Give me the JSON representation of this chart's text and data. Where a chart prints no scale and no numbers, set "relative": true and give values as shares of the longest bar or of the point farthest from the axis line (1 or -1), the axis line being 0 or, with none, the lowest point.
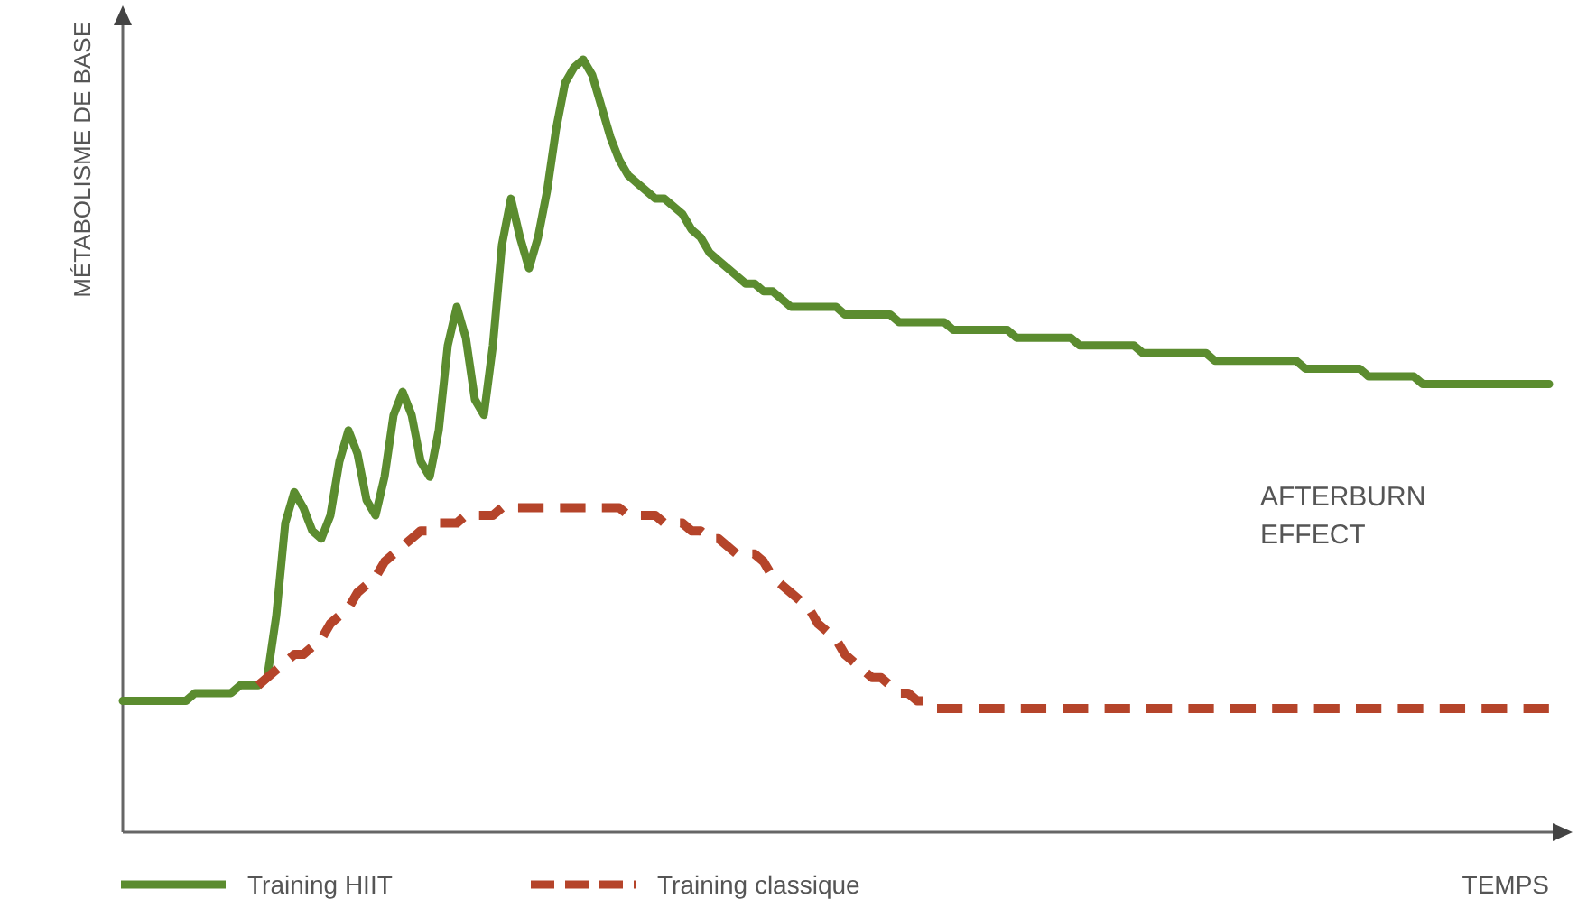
{
  "chart_data": {
    "type": "line",
    "relative": true,
    "xlabel": "TEMPS",
    "ylabel": "MÉTABOLISME DE BASE",
    "legend": "bottom",
    "annotations": [
      "AFTERBURN EFFECT"
    ],
    "categories": [
      null,
      null,
      null,
      null,
      null,
      null,
      null,
      null,
      null,
      null,
      null,
      null,
      null,
      null,
      null,
      null,
      null,
      null,
      null,
      null,
      null,
      null,
      null,
      null,
      null,
      null,
      null,
      null,
      null,
      null,
      null,
      null,
      null,
      null,
      null,
      null,
      null,
      null,
      null,
      null,
      null,
      null,
      null,
      null,
      null,
      null,
      null,
      null,
      null,
      null,
      null,
      null,
      null,
      null,
      null,
      null,
      null,
      null,
      null,
      null,
      null,
      null,
      null,
      null,
      null,
      null,
      null,
      null,
      null,
      null,
      null,
      null,
      null,
      null,
      null,
      null,
      null,
      null,
      null,
      null,
      null,
      null,
      null,
      null,
      null,
      null,
      null,
      null,
      null,
      null,
      null,
      null,
      null,
      null,
      null,
      null,
      null,
      null,
      null,
      null,
      null,
      null,
      null,
      null,
      null,
      null,
      null,
      null,
      null,
      null,
      null,
      null,
      null,
      null,
      null,
      null,
      null,
      null,
      null,
      null,
      null,
      null,
      null,
      null,
      null,
      null,
      null,
      null,
      null,
      null,
      null,
      null,
      null,
      null,
      null,
      null,
      null,
      null,
      null,
      null,
      null,
      null,
      null,
      null,
      null,
      null,
      null,
      null,
      null,
      null,
      null,
      null,
      null,
      null,
      null,
      null,
      null,
      null,
      null
    ],
    "series": [
      {
        "name": "Training HIIT",
        "color": "#5b8c2f",
        "line_style": "solid",
        "values": [
          0.17,
          0.17,
          0.17,
          0.17,
          0.17,
          0.17,
          0.17,
          0.17,
          0.18,
          0.18,
          0.18,
          0.18,
          0.18,
          0.19,
          0.19,
          0.19,
          0.2,
          0.28,
          0.4,
          0.44,
          0.42,
          0.39,
          0.38,
          0.41,
          0.48,
          0.52,
          0.49,
          0.43,
          0.41,
          0.46,
          0.54,
          0.57,
          0.54,
          0.48,
          0.46,
          0.52,
          0.63,
          0.68,
          0.64,
          0.56,
          0.54,
          0.63,
          0.76,
          0.82,
          0.77,
          0.73,
          0.77,
          0.83,
          0.91,
          0.97,
          0.99,
          1,
          0.98,
          0.94,
          0.9,
          0.87,
          0.85,
          0.84,
          0.83,
          0.82,
          0.82,
          0.81,
          0.8,
          0.78,
          0.77,
          0.75,
          0.74,
          0.73,
          0.72,
          0.71,
          0.71,
          0.7,
          0.7,
          0.69,
          0.68,
          0.68,
          0.68,
          0.68,
          0.68,
          0.68,
          0.67,
          0.67,
          0.67,
          0.67,
          0.67,
          0.67,
          0.66,
          0.66,
          0.66,
          0.66,
          0.66,
          0.66,
          0.65,
          0.65,
          0.65,
          0.65,
          0.65,
          0.65,
          0.65,
          0.64,
          0.64,
          0.64,
          0.64,
          0.64,
          0.64,
          0.64,
          0.63,
          0.63,
          0.63,
          0.63,
          0.63,
          0.63,
          0.63,
          0.62,
          0.62,
          0.62,
          0.62,
          0.62,
          0.62,
          0.62,
          0.62,
          0.61,
          0.61,
          0.61,
          0.61,
          0.61,
          0.61,
          0.61,
          0.61,
          0.61,
          0.61,
          0.6,
          0.6,
          0.6,
          0.6,
          0.6,
          0.6,
          0.6,
          0.59,
          0.59,
          0.59,
          0.59,
          0.59,
          0.59,
          0.58,
          0.58,
          0.58,
          0.58,
          0.58,
          0.58,
          0.58,
          0.58,
          0.58,
          0.58,
          0.58,
          0.58,
          0.58,
          0.58,
          0.58
        ]
      },
      {
        "name": "Training classique",
        "color": "#b5442a",
        "line_style": "dashed",
        "values": [
          null,
          null,
          null,
          null,
          null,
          null,
          null,
          null,
          null,
          null,
          null,
          null,
          null,
          null,
          null,
          0.19,
          0.2,
          0.21,
          0.22,
          0.23,
          0.23,
          0.24,
          0.25,
          0.27,
          0.28,
          0.29,
          0.31,
          0.32,
          0.33,
          0.35,
          0.36,
          0.37,
          0.38,
          0.39,
          0.39,
          0.4,
          0.4,
          0.4,
          0.41,
          0.41,
          0.41,
          0.41,
          0.42,
          0.42,
          0.42,
          0.42,
          0.42,
          0.42,
          0.42,
          0.42,
          0.42,
          0.42,
          0.42,
          0.42,
          0.42,
          0.42,
          0.41,
          0.41,
          0.41,
          0.41,
          0.4,
          0.4,
          0.4,
          0.39,
          0.39,
          0.38,
          0.38,
          0.37,
          0.36,
          0.36,
          0.36,
          0.35,
          0.33,
          0.32,
          0.31,
          0.3,
          0.29,
          0.27,
          0.26,
          0.25,
          0.23,
          0.22,
          0.21,
          0.2,
          0.2,
          0.19,
          0.18,
          0.18,
          0.17,
          0.17,
          0.16,
          0.16,
          0.16,
          0.16,
          0.16,
          0.16,
          0.16,
          0.16,
          0.16,
          0.16,
          0.16,
          0.16,
          0.16,
          0.16,
          0.16,
          0.16,
          0.16,
          0.16,
          0.16,
          0.16,
          0.16,
          0.16,
          0.16,
          0.16,
          0.16,
          0.16,
          0.16,
          0.16,
          0.16,
          0.16,
          0.16,
          0.16,
          0.16,
          0.16,
          0.16,
          0.16,
          0.16,
          0.16,
          0.16,
          0.16,
          0.16,
          0.16,
          0.16,
          0.16,
          0.16,
          0.16,
          0.16,
          0.16,
          0.16,
          0.16,
          0.16,
          0.16,
          0.16,
          0.16,
          0.16,
          0.16,
          0.16,
          0.16,
          0.16,
          0.16,
          0.16,
          0.16,
          0.16,
          0.16,
          0.16,
          0.16,
          0.16,
          0.16,
          0.16
        ]
      }
    ]
  }
}
